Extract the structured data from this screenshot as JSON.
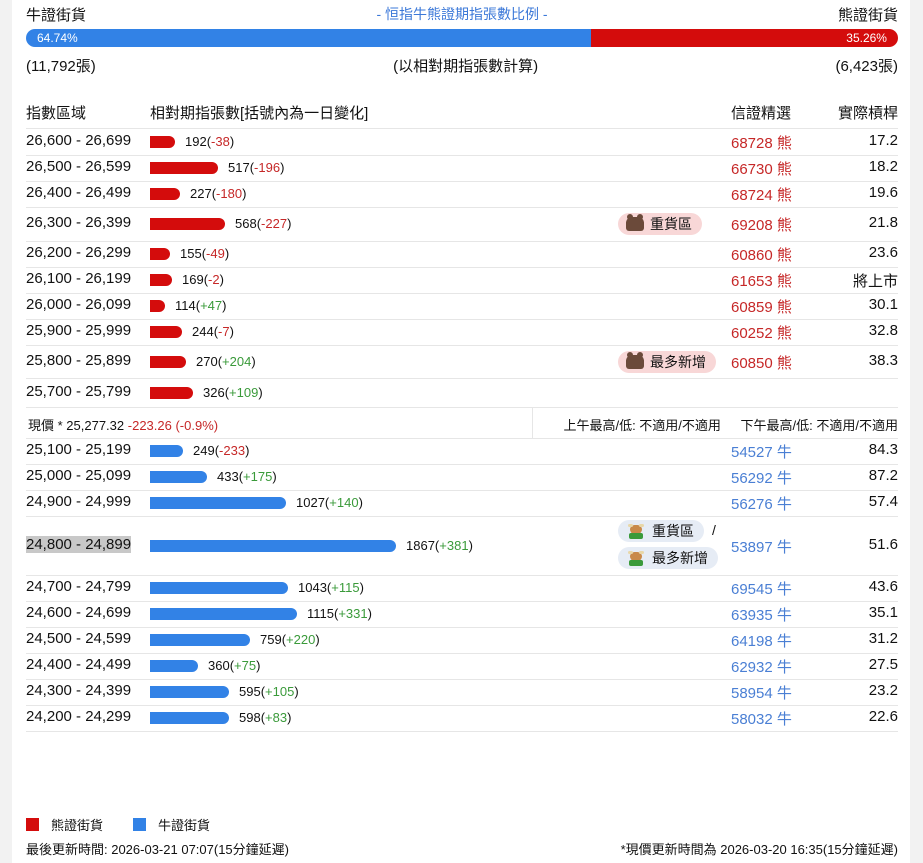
{
  "header": {
    "bull_label": "牛證街貨",
    "title": "- 恒指牛熊證期指張數比例 -",
    "bear_label": "熊證街貨",
    "bull_pct": "64.74%",
    "bear_pct": "35.26%",
    "bull_pct_value": 64.74,
    "bear_pct_value": 35.26,
    "bull_count": "(11,792張)",
    "note": "(以相對期指張數計算)",
    "bear_count": "(6,423張)"
  },
  "columns": {
    "range": "指數區域",
    "contracts": "相對期指張數[括號內為一日變化]",
    "pick": "信證精選",
    "leverage": "實際槓桿"
  },
  "colors": {
    "bear": "#d40c0c",
    "bull": "#3282e6",
    "neg": "#c62828",
    "pos": "#3a9a3a"
  },
  "bear_rows": [
    {
      "range": "26,600 - 26,699",
      "count": "192",
      "change": "-38",
      "code": "68728 熊",
      "leverage": "17.2"
    },
    {
      "range": "26,500 - 26,599",
      "count": "517",
      "change": "-196",
      "code": "66730 熊",
      "leverage": "18.2"
    },
    {
      "range": "26,400 - 26,499",
      "count": "227",
      "change": "-180",
      "code": "68724 熊",
      "leverage": "19.6"
    },
    {
      "range": "26,300 - 26,399",
      "count": "568",
      "change": "-227",
      "code": "69208 熊",
      "leverage": "21.8",
      "tag": "重貨區"
    },
    {
      "range": "26,200 - 26,299",
      "count": "155",
      "change": "-49",
      "code": "60860 熊",
      "leverage": "23.6"
    },
    {
      "range": "26,100 - 26,199",
      "count": "169",
      "change": "-2",
      "code": "61653 熊",
      "leverage": "將上市"
    },
    {
      "range": "26,000 - 26,099",
      "count": "114",
      "change": "+47",
      "code": "60859 熊",
      "leverage": "30.1"
    },
    {
      "range": "25,900 - 25,999",
      "count": "244",
      "change": "-7",
      "code": "60252 熊",
      "leverage": "32.8"
    },
    {
      "range": "25,800 - 25,899",
      "count": "270",
      "change": "+204",
      "code": "60850 熊",
      "leverage": "38.3",
      "tag": "最多新增"
    },
    {
      "range": "25,700 - 25,799",
      "count": "326",
      "change": "+109",
      "code": "",
      "leverage": ""
    }
  ],
  "price": {
    "label": "現價 *",
    "value": "25,277.32",
    "change": "-223.26 (-0.9%)",
    "am": "上午最高/低: 不適用/不適用",
    "pm": "下午最高/低: 不適用/不適用"
  },
  "bull_rows": [
    {
      "range": "25,100 - 25,199",
      "count": "249",
      "change": "-233",
      "code": "54527 牛",
      "leverage": "84.3"
    },
    {
      "range": "25,000 - 25,099",
      "count": "433",
      "change": "+175",
      "code": "56292 牛",
      "leverage": "87.2"
    },
    {
      "range": "24,900 - 24,999",
      "count": "1027",
      "change": "+140",
      "code": "56276 牛",
      "leverage": "57.4"
    },
    {
      "range": "24,800 - 24,899",
      "count": "1867",
      "change": "+381",
      "code": "53897 牛",
      "leverage": "51.6",
      "tag": "重貨區",
      "tag2": "最多新增",
      "sep": "/"
    },
    {
      "range": "24,700 - 24,799",
      "count": "1043",
      "change": "+115",
      "code": "69545 牛",
      "leverage": "43.6"
    },
    {
      "range": "24,600 - 24,699",
      "count": "1115",
      "change": "+331",
      "code": "63935 牛",
      "leverage": "35.1"
    },
    {
      "range": "24,500 - 24,599",
      "count": "759",
      "change": "+220",
      "code": "64198 牛",
      "leverage": "31.2"
    },
    {
      "range": "24,400 - 24,499",
      "count": "360",
      "change": "+75",
      "code": "62932 牛",
      "leverage": "27.5"
    },
    {
      "range": "24,300 - 24,399",
      "count": "595",
      "change": "+105",
      "code": "58954 牛",
      "leverage": "23.2"
    },
    {
      "range": "24,200 - 24,299",
      "count": "598",
      "change": "+83",
      "code": "58032 牛",
      "leverage": "22.6"
    }
  ],
  "legend": {
    "bear": "熊證街貨",
    "bull": "牛證街貨"
  },
  "footer": {
    "updated": "最後更新時間: 2026-03-21 07:07(15分鐘延遲)",
    "price_updated": "*現價更新時間為 2026-03-20 16:35(15分鐘延遲)"
  }
}
